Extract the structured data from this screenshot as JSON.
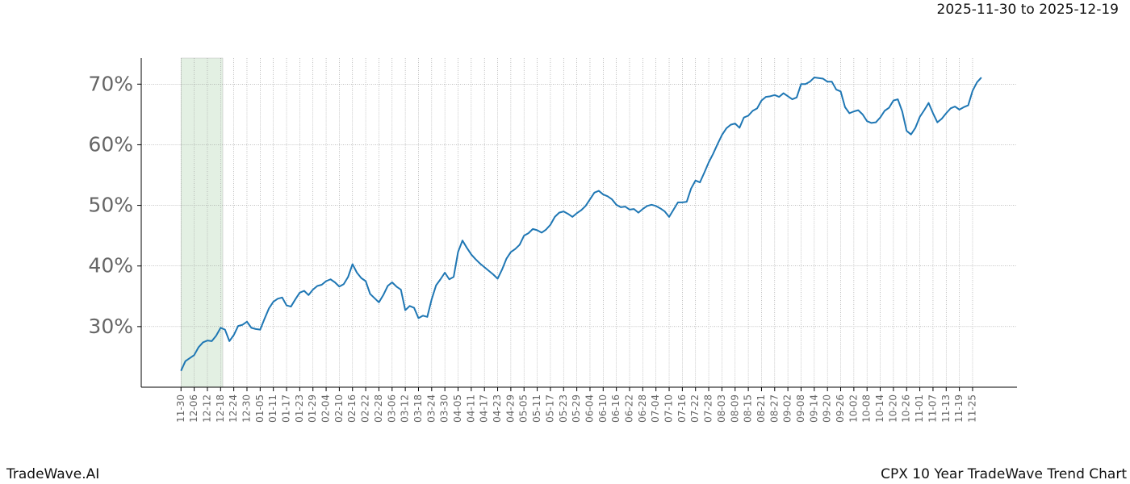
{
  "chart_data": {
    "type": "line",
    "title": "CPX 10 Year TradeWave Trend Chart",
    "subtitle": "2025-11-30 to 2025-12-19",
    "watermark": "TradeWave.AI",
    "categories": [
      "11-30",
      null,
      null,
      "12-06",
      null,
      null,
      "12-12",
      null,
      null,
      "12-18",
      null,
      null,
      "12-24",
      null,
      null,
      "12-30",
      null,
      null,
      "01-05",
      null,
      null,
      "01-11",
      null,
      null,
      "01-17",
      null,
      null,
      "01-23",
      null,
      null,
      "01-29",
      null,
      null,
      "02-04",
      null,
      null,
      "02-10",
      null,
      null,
      "02-16",
      null,
      null,
      "02-22",
      null,
      null,
      "02-28",
      null,
      null,
      "03-06",
      null,
      null,
      "03-12",
      null,
      null,
      "03-18",
      null,
      null,
      "03-24",
      null,
      null,
      "03-30",
      null,
      null,
      "04-05",
      null,
      null,
      "04-11",
      null,
      null,
      "04-17",
      null,
      null,
      "04-23",
      null,
      null,
      "04-29",
      null,
      null,
      "05-05",
      null,
      null,
      "05-11",
      null,
      null,
      "05-17",
      null,
      null,
      "05-23",
      null,
      null,
      "05-29",
      null,
      null,
      "06-04",
      null,
      null,
      "06-10",
      null,
      null,
      "06-16",
      null,
      null,
      "06-22",
      null,
      null,
      "06-28",
      null,
      null,
      "07-04",
      null,
      null,
      "07-10",
      null,
      null,
      "07-16",
      null,
      null,
      "07-22",
      null,
      null,
      "07-28",
      null,
      null,
      "08-03",
      null,
      null,
      "08-09",
      null,
      null,
      "08-15",
      null,
      null,
      "08-21",
      null,
      null,
      "08-27",
      null,
      null,
      "09-02",
      null,
      null,
      "09-08",
      null,
      null,
      "09-14",
      null,
      null,
      "09-20",
      null,
      null,
      "09-26",
      null,
      null,
      "10-02",
      null,
      null,
      "10-08",
      null,
      null,
      "10-14",
      null,
      null,
      "10-20",
      null,
      null,
      "10-26",
      null,
      null,
      "11-01",
      null,
      null,
      "11-07",
      null,
      null,
      "11-13",
      null,
      null,
      "11-19",
      null,
      null,
      "11-25",
      null,
      null
    ],
    "series": [
      {
        "name": "CPX",
        "color": "#1f77b4",
        "values": [
          22.7,
          24.3,
          24.8,
          25.3,
          26.6,
          27.4,
          27.7,
          27.6,
          28.5,
          29.8,
          29.5,
          27.6,
          28.6,
          30.1,
          30.3,
          30.8,
          29.8,
          29.6,
          29.5,
          31.3,
          33,
          34.1,
          34.6,
          34.8,
          33.5,
          33.3,
          34.5,
          35.6,
          35.9,
          35.2,
          36.1,
          36.7,
          36.9,
          37.5,
          37.8,
          37.3,
          36.6,
          37,
          38.2,
          40.3,
          38.9,
          38,
          37.5,
          35.4,
          34.7,
          34,
          35.2,
          36.7,
          37.3,
          36.6,
          36.1,
          32.7,
          33.4,
          33.1,
          31.4,
          31.8,
          31.6,
          34.5,
          36.8,
          37.8,
          38.9,
          37.8,
          38.2,
          42.3,
          44.2,
          43,
          41.9,
          41.1,
          40.4,
          39.8,
          39.2,
          38.6,
          37.9,
          39.4,
          41.2,
          42.3,
          42.8,
          43.5,
          45,
          45.4,
          46.1,
          45.9,
          45.5,
          46,
          46.8,
          48.1,
          48.8,
          49,
          48.6,
          48.1,
          48.7,
          49.2,
          49.9,
          51,
          52.1,
          52.4,
          51.8,
          51.5,
          51,
          50.1,
          49.7,
          49.8,
          49.3,
          49.4,
          48.8,
          49.4,
          49.9,
          50.1,
          49.9,
          49.5,
          49,
          48.1,
          49.3,
          50.5,
          50.5,
          50.6,
          52.8,
          54.1,
          53.8,
          55.4,
          57.1,
          58.5,
          60.1,
          61.6,
          62.7,
          63.3,
          63.5,
          62.8,
          64.5,
          64.8,
          65.6,
          66,
          67.3,
          67.9,
          68,
          68.2,
          67.9,
          68.5,
          68,
          67.5,
          67.8,
          70,
          70,
          70.4,
          71.1,
          71,
          70.9,
          70.4,
          70.4,
          69.1,
          68.8,
          66.2,
          65.2,
          65.5,
          65.7,
          65,
          63.9,
          63.6,
          63.7,
          64.5,
          65.6,
          66.1,
          67.3,
          67.5,
          65.5,
          62.3,
          61.7,
          62.8,
          64.6,
          65.7,
          66.9,
          65.2,
          63.7,
          64.3,
          65.2,
          66,
          66.3,
          65.8,
          66.2,
          66.5,
          68.9,
          70.3,
          71.1
        ]
      }
    ],
    "ylim": [
      20,
      74.3
    ],
    "yticks": [
      {
        "value": 30,
        "label": "30%"
      },
      {
        "value": 40,
        "label": "40%"
      },
      {
        "value": 50,
        "label": "50%"
      },
      {
        "value": 60,
        "label": "60%"
      },
      {
        "value": 70,
        "label": "70%"
      }
    ],
    "grid": true,
    "highlight": {
      "from": 0,
      "to": 9.5,
      "color": "#e3f0e3"
    }
  }
}
